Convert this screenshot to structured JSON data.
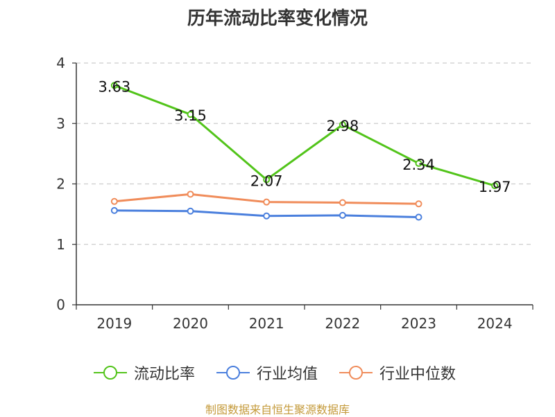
{
  "chart_data": {
    "type": "line",
    "title": "历年流动比率变化情况",
    "categories": [
      "2019",
      "2020",
      "2021",
      "2022",
      "2023",
      "2024"
    ],
    "ylim": [
      0,
      4
    ],
    "yticks": [
      0,
      1,
      2,
      3,
      4
    ],
    "grid": true,
    "legend_position": "bottom",
    "series": [
      {
        "name": "流动比率",
        "color": "#52c41a",
        "values": [
          3.63,
          3.15,
          2.07,
          2.98,
          2.34,
          1.97
        ],
        "labels": [
          "3.63",
          "3.15",
          "2.07",
          "2.98",
          "2.34",
          "1.97"
        ],
        "show_labels": true
      },
      {
        "name": "行业均值",
        "color": "#4a7fdd",
        "values": [
          1.56,
          1.55,
          1.47,
          1.48,
          1.45,
          null
        ],
        "show_labels": false
      },
      {
        "name": "行业中位数",
        "color": "#f08c5a",
        "values": [
          1.71,
          1.83,
          1.7,
          1.69,
          1.67,
          null
        ],
        "show_labels": false
      }
    ]
  },
  "footer": {
    "source": "制图数据来自恒生聚源数据库"
  }
}
